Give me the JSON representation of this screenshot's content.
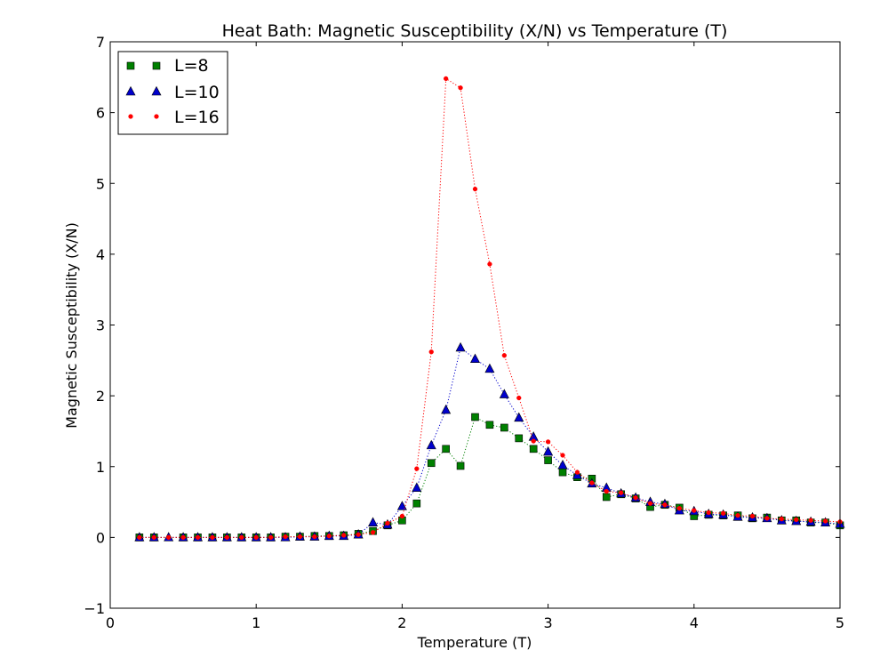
{
  "chart_data": {
    "type": "scatter",
    "title": "Heat Bath: Magnetic Susceptibility (X/N) vs Temperature (T)",
    "xlabel": "Temperature (T)",
    "ylabel": "Magnetic Susceptibility (X/N)",
    "xlim": [
      0,
      5
    ],
    "ylim": [
      -1,
      7
    ],
    "xticks": [
      0,
      1,
      2,
      3,
      4,
      5
    ],
    "yticks": [
      -1,
      0,
      1,
      2,
      3,
      4,
      5,
      6,
      7
    ],
    "xtick_labels": [
      "0",
      "1",
      "2",
      "3",
      "4",
      "5"
    ],
    "ytick_labels": [
      "−1",
      "0",
      "1",
      "2",
      "3",
      "4",
      "5",
      "6",
      "7"
    ],
    "grid": false,
    "legend_position": "top-left",
    "x": [
      0.2,
      0.3,
      0.4,
      0.5,
      0.6,
      0.7,
      0.8,
      0.9,
      1.0,
      1.1,
      1.2,
      1.3,
      1.4,
      1.5,
      1.6,
      1.7,
      1.8,
      1.9,
      2.0,
      2.1,
      2.2,
      2.3,
      2.4,
      2.5,
      2.6,
      2.7,
      2.8,
      2.9,
      3.0,
      3.1,
      3.2,
      3.3,
      3.4,
      3.5,
      3.6,
      3.7,
      3.8,
      3.9,
      4.0,
      4.1,
      4.2,
      4.3,
      4.4,
      4.5,
      4.6,
      4.7,
      4.8,
      4.9,
      5.0
    ],
    "series": [
      {
        "name": "L=8",
        "color": "#008000",
        "marker": "square",
        "values": [
          0,
          0,
          null,
          0,
          0,
          0,
          0,
          0,
          0,
          0,
          0.01,
          0.01,
          0.02,
          0.02,
          0.03,
          0.05,
          0.09,
          0.17,
          0.24,
          0.48,
          1.05,
          1.25,
          1.01,
          1.7,
          1.59,
          1.55,
          1.4,
          1.25,
          1.09,
          0.92,
          0.85,
          0.83,
          0.57,
          0.61,
          0.55,
          0.43,
          0.46,
          0.42,
          0.3,
          0.32,
          0.31,
          0.31,
          0.27,
          0.28,
          0.24,
          0.24,
          0.21,
          0.21,
          0.17
        ]
      },
      {
        "name": "L=10",
        "color": "#0000cc",
        "marker": "triangle",
        "values": [
          0,
          0,
          0,
          0,
          0,
          0,
          0,
          0,
          0,
          0,
          0,
          0.01,
          0.01,
          0.02,
          0.02,
          0.04,
          0.21,
          0.18,
          0.44,
          0.7,
          1.3,
          1.8,
          2.68,
          2.52,
          2.38,
          2.02,
          1.69,
          1.42,
          1.21,
          1.02,
          0.88,
          0.76,
          0.7,
          0.62,
          0.56,
          0.5,
          0.47,
          0.38,
          0.37,
          0.33,
          0.32,
          0.29,
          0.28,
          0.27,
          0.24,
          0.23,
          0.22,
          0.21,
          0.19
        ]
      },
      {
        "name": "L=16",
        "color": "#ff0000",
        "marker": "dot",
        "values": [
          0,
          0,
          0,
          0,
          0,
          0,
          0,
          0,
          0,
          0,
          0.01,
          0.01,
          0.01,
          0.02,
          0.03,
          0.04,
          0.07,
          0.2,
          0.3,
          0.97,
          2.62,
          6.48,
          6.35,
          4.92,
          3.86,
          2.57,
          1.97,
          1.36,
          1.35,
          1.16,
          0.92,
          0.77,
          0.65,
          0.63,
          0.56,
          0.48,
          0.46,
          0.41,
          0.38,
          0.35,
          0.34,
          0.31,
          0.3,
          0.27,
          0.26,
          0.25,
          0.24,
          0.23,
          0.22
        ]
      }
    ]
  }
}
